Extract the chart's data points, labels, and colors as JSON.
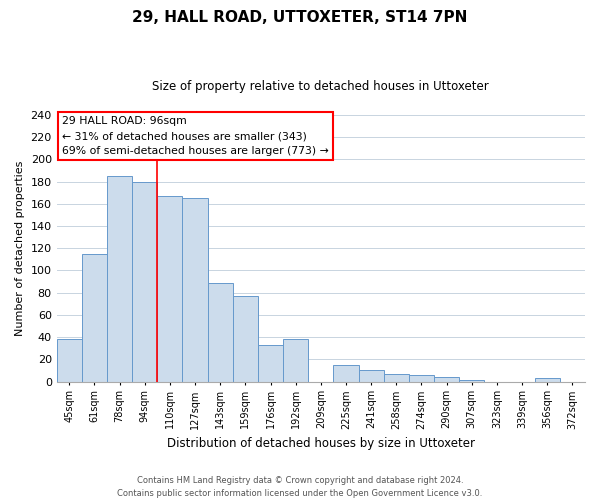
{
  "title": "29, HALL ROAD, UTTOXETER, ST14 7PN",
  "subtitle": "Size of property relative to detached houses in Uttoxeter",
  "xlabel": "Distribution of detached houses by size in Uttoxeter",
  "ylabel": "Number of detached properties",
  "bar_labels": [
    "45sqm",
    "61sqm",
    "78sqm",
    "94sqm",
    "110sqm",
    "127sqm",
    "143sqm",
    "159sqm",
    "176sqm",
    "192sqm",
    "209sqm",
    "225sqm",
    "241sqm",
    "258sqm",
    "274sqm",
    "290sqm",
    "307sqm",
    "323sqm",
    "339sqm",
    "356sqm",
    "372sqm"
  ],
  "bar_values": [
    38,
    115,
    185,
    180,
    167,
    165,
    89,
    77,
    33,
    38,
    0,
    15,
    10,
    7,
    6,
    4,
    1,
    0,
    0,
    3,
    0
  ],
  "bar_color": "#ccdcec",
  "bar_edge_color": "#6699cc",
  "ylim": [
    0,
    240
  ],
  "yticks": [
    0,
    20,
    40,
    60,
    80,
    100,
    120,
    140,
    160,
    180,
    200,
    220,
    240
  ],
  "annotation_box_text": "29 HALL ROAD: 96sqm\n← 31% of detached houses are smaller (343)\n69% of semi-detached houses are larger (773) →",
  "vline_x": 3,
  "footer_line1": "Contains HM Land Registry data © Crown copyright and database right 2024.",
  "footer_line2": "Contains public sector information licensed under the Open Government Licence v3.0.",
  "bg_color": "#ffffff",
  "grid_color": "#c8d4e0"
}
